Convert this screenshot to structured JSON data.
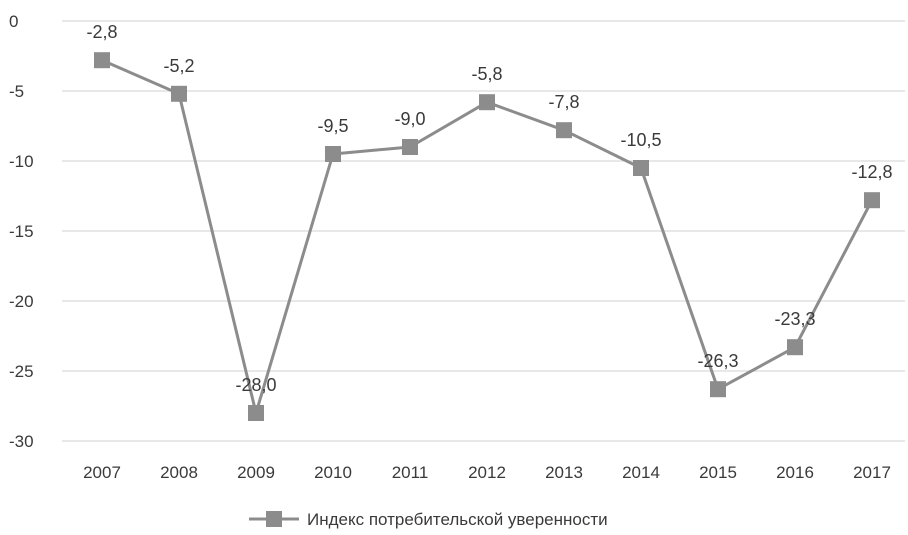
{
  "chart_data": {
    "type": "line",
    "categories": [
      "2007",
      "2008",
      "2009",
      "2010",
      "2011",
      "2012",
      "2013",
      "2014",
      "2015",
      "2016",
      "2017"
    ],
    "series": [
      {
        "name": "Индекс потребительской уверенности",
        "values": [
          -2.8,
          -5.2,
          -28.0,
          -9.5,
          -9.0,
          -5.8,
          -7.8,
          -10.5,
          -26.3,
          -23.3,
          -12.8
        ],
        "data_labels": [
          "-2,8",
          "-5,2",
          "-28,0",
          "-9,5",
          "-9,0",
          "-5,8",
          "-7,8",
          "-10,5",
          "-26,3",
          "-23,3",
          "-12,8"
        ],
        "color": "#8c8c8c",
        "marker": "square"
      }
    ],
    "y_ticks": [
      0,
      -5,
      -10,
      -15,
      -20,
      -25,
      -30
    ],
    "ylim": [
      -30,
      0
    ],
    "grid": true,
    "legend_position": "bottom",
    "title": "",
    "xlabel": "",
    "ylabel": ""
  },
  "colors": {
    "series": "#8c8c8c",
    "grid": "#d9d9d9",
    "text": "#3a3a3a"
  }
}
